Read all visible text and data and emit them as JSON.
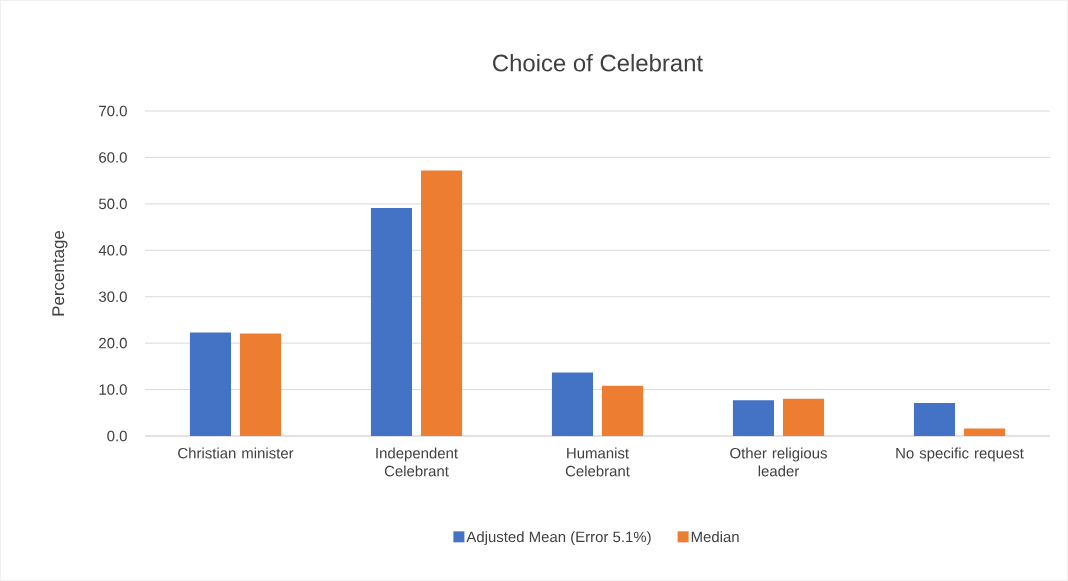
{
  "chart_data": {
    "type": "bar",
    "title": "Choice of Celebrant",
    "ylabel": "Percentage",
    "categories": [
      "Christian minister",
      "Independent Celebrant",
      "Humanist Celebrant",
      "Other religious leader",
      "No specific request"
    ],
    "series": [
      {
        "name": "Adjusted Mean (Error 5.1%)",
        "color": "#4472c4",
        "values": [
          22.3,
          49.1,
          13.7,
          7.7,
          7.1
        ]
      },
      {
        "name": "Median",
        "color": "#ed7d31",
        "values": [
          22.1,
          57.2,
          10.8,
          8.0,
          1.6
        ]
      }
    ],
    "ylim": [
      0,
      70
    ],
    "yticks": [
      {
        "value": 0,
        "label": "0.0"
      },
      {
        "value": 10,
        "label": "10.0"
      },
      {
        "value": 20,
        "label": "20.0"
      },
      {
        "value": 30,
        "label": "30.0"
      },
      {
        "value": 40,
        "label": "40.0"
      },
      {
        "value": 50,
        "label": "50.0"
      },
      {
        "value": 60,
        "label": "60.0"
      },
      {
        "value": 70,
        "label": "70.0"
      }
    ],
    "grid": "y",
    "legend": "bottom"
  }
}
